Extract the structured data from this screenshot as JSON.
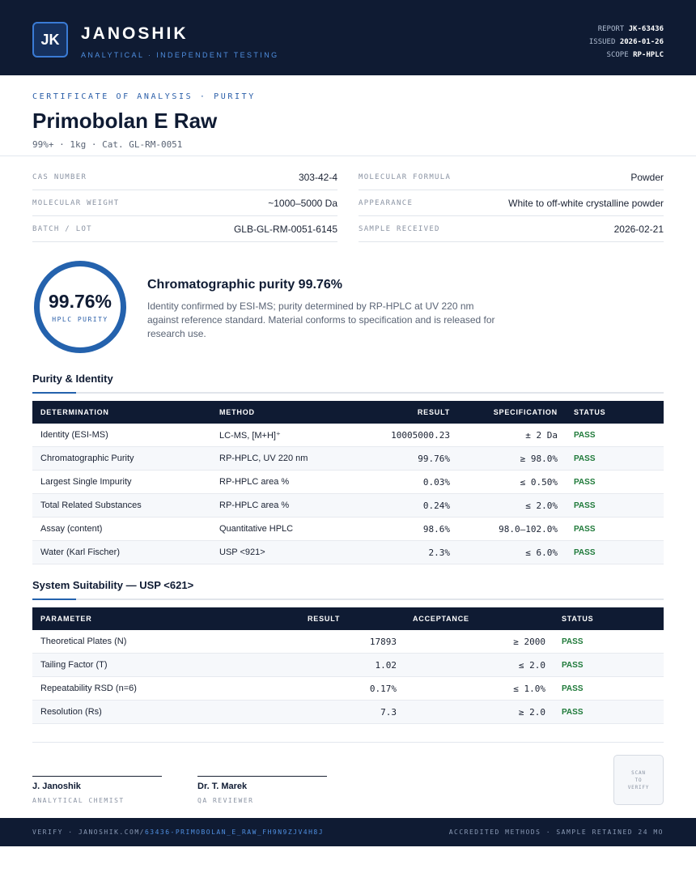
{
  "header": {
    "logo": "JK",
    "brand": "JANOSHIK",
    "brand_sub": "ANALYTICAL · INDEPENDENT TESTING",
    "report_label": "REPORT",
    "report_value": "JK-63436",
    "issued_label": "ISSUED",
    "issued_value": "2026-01-26",
    "scope_label": "SCOPE",
    "scope_value": "RP-HPLC"
  },
  "doc": {
    "eyebrow": "CERTIFICATE OF ANALYSIS · PURITY",
    "title": "Primobolan E Raw",
    "subtitle": "99%+ · 1kg  ·  Cat. GL-RM-0051"
  },
  "properties": {
    "left": [
      {
        "key": "CAS NUMBER",
        "value": "303-42-4"
      },
      {
        "key": "MOLECULAR WEIGHT",
        "value": "~1000–5000 Da"
      },
      {
        "key": "BATCH / LOT",
        "value": "GLB-GL-RM-0051-6145"
      }
    ],
    "right": [
      {
        "key": "MOLECULAR FORMULA",
        "value": "Powder"
      },
      {
        "key": "APPEARANCE",
        "value": "White to off-white crystalline powder"
      },
      {
        "key": "SAMPLE RECEIVED",
        "value": "2026-02-21"
      }
    ]
  },
  "purity": {
    "value": "99.76%",
    "ring_label": "HPLC PURITY",
    "heading": "Chromatographic purity 99.76%",
    "description": "Identity confirmed by ESI-MS; purity determined by RP-HPLC at UV 220 nm against reference standard. Material conforms to specification and is released for research use."
  },
  "purity_identity": {
    "title": "Purity & Identity",
    "headers": [
      "DETERMINATION",
      "METHOD",
      "RESULT",
      "SPECIFICATION",
      "STATUS"
    ],
    "rows": [
      {
        "determination": "Identity (ESI-MS)",
        "method": "LC-MS, [M+H]⁺",
        "result": "10005000.23",
        "spec": "± 2 Da",
        "status": "PASS"
      },
      {
        "determination": "Chromatographic Purity",
        "method": "RP-HPLC, UV 220 nm",
        "result": "99.76%",
        "spec": "≥ 98.0%",
        "status": "PASS"
      },
      {
        "determination": "Largest Single Impurity",
        "method": "RP-HPLC area %",
        "result": "0.03%",
        "spec": "≤ 0.50%",
        "status": "PASS"
      },
      {
        "determination": "Total Related Substances",
        "method": "RP-HPLC area %",
        "result": "0.24%",
        "spec": "≤ 2.0%",
        "status": "PASS"
      },
      {
        "determination": "Assay (content)",
        "method": "Quantitative HPLC",
        "result": "98.6%",
        "spec": "98.0–102.0%",
        "status": "PASS"
      },
      {
        "determination": "Water (Karl Fischer)",
        "method": "USP <921>",
        "result": "2.3%",
        "spec": "≤ 6.0%",
        "status": "PASS"
      }
    ]
  },
  "system_suitability": {
    "title": "System Suitability — USP <621>",
    "headers": [
      "PARAMETER",
      "RESULT",
      "ACCEPTANCE",
      "STATUS"
    ],
    "rows": [
      {
        "parameter": "Theoretical Plates (N)",
        "result": "17893",
        "acceptance": "≥ 2000",
        "status": "PASS"
      },
      {
        "parameter": "Tailing Factor (T)",
        "result": "1.02",
        "acceptance": "≤ 2.0",
        "status": "PASS"
      },
      {
        "parameter": "Repeatability RSD (n=6)",
        "result": "0.17%",
        "acceptance": "≤ 1.0%",
        "status": "PASS"
      },
      {
        "parameter": "Resolution (Rs)",
        "result": "7.3",
        "acceptance": "≥ 2.0",
        "status": "PASS"
      }
    ]
  },
  "signatures": [
    {
      "name": "J. Janoshik",
      "role": "ANALYTICAL CHEMIST"
    },
    {
      "name": "Dr. T. Marek",
      "role": "QA REVIEWER"
    }
  ],
  "qr": {
    "line1": "SCAN",
    "line2": "TO",
    "line3": "VERIFY"
  },
  "footer": {
    "verify_prefix": "VERIFY · JANOSHIK.COM/",
    "verify_link": "63436-PRIMOBOLAN_E_RAW_FH9N9ZJV4H8J",
    "right": "ACCREDITED METHODS · SAMPLE RETAINED 24 MO"
  },
  "colors": {
    "navy": "#0f1b33",
    "accent": "#2462ad",
    "pass": "#1f7a3a"
  }
}
